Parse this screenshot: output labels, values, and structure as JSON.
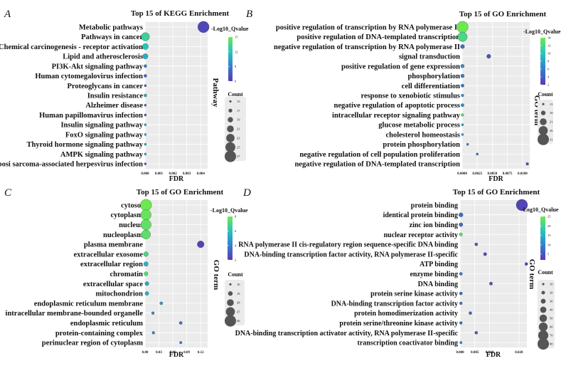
{
  "chart_data": [
    {
      "panel": "A",
      "type": "scatter",
      "title": "Top 15 of KEGG Enrichment",
      "xlabel": "FDR",
      "ylabel": "Pathway",
      "xlim": [
        0,
        0.0045
      ],
      "x_ticks": [
        "0.000",
        "0.001",
        "0.002",
        "0.003",
        "0.004"
      ],
      "x_tick_values": [
        0,
        0.001,
        0.002,
        0.003,
        0.004
      ],
      "color_legend_title": "-Log10_Qvalue",
      "color_range": [
        6,
        15
      ],
      "color_ticks": [
        "15",
        "12",
        "9",
        "6"
      ],
      "color_tick_values": [
        15,
        12,
        9,
        6
      ],
      "size_legend_title": "Count",
      "size_legend": [
        "15",
        "17",
        "19",
        "21",
        "23",
        "25",
        "27"
      ],
      "size_legend_values": [
        15,
        17,
        19,
        21,
        23,
        25,
        27
      ],
      "size_range": [
        15,
        27
      ],
      "categories": [
        "Metabolic pathways",
        "Pathways in cancer",
        "Chemical carcinogenesis - receptor activation",
        "Lipid and atherosclerosis",
        "PI3K-Akt signaling pathway",
        "Human cytomegalovirus infection",
        "Proteoglycans in cancer",
        "Insulin resistance",
        "Alzheimer disease",
        "Human papillomavirus infection",
        "Insulin signaling pathway",
        "FoxO signaling pathway",
        "Thyroid hormone signaling pathway",
        "AMPK signaling pathway",
        "Kaposi sarcoma-associated herpesvirus infection"
      ],
      "x": [
        0.0042,
        2e-05,
        2e-05,
        2e-05,
        2e-05,
        2e-05,
        2e-05,
        2e-05,
        2e-05,
        2e-05,
        2e-05,
        2e-05,
        2e-05,
        2e-05,
        2e-05
      ],
      "count": [
        27,
        23,
        20,
        19,
        16,
        16,
        15,
        16,
        15,
        15,
        15,
        15,
        15,
        15,
        15
      ],
      "color": [
        6.5,
        13,
        12,
        11,
        9,
        8,
        7.5,
        11,
        8,
        7.5,
        11,
        11,
        11,
        11,
        8
      ]
    },
    {
      "panel": "B",
      "type": "scatter",
      "title": "Top 15 of GO Enrichment",
      "xlabel": "FDR",
      "ylabel": "GO term",
      "xlim": [
        0,
        0.0112
      ],
      "x_ticks": [
        "0.0000",
        "0.0025",
        "0.0050",
        "0.0075",
        "0.0100"
      ],
      "x_tick_values": [
        0,
        0.0025,
        0.005,
        0.0075,
        0.01
      ],
      "color_legend_title": "-Log10_Qvalue",
      "color_range": [
        2,
        14
      ],
      "color_ticks": [
        "14",
        "12",
        "10",
        "8",
        "6",
        "4",
        "2"
      ],
      "color_tick_values": [
        14,
        12,
        10,
        8,
        6,
        4,
        2
      ],
      "size_legend_title": "Count",
      "size_legend": [
        "11",
        "16",
        "21",
        "26",
        "31"
      ],
      "size_legend_values": [
        11,
        16,
        21,
        26,
        31
      ],
      "size_range": [
        11,
        31
      ],
      "categories": [
        "positive regulation of transcription by RNA polymerase II",
        "positive regulation of DNA-templated transcription",
        "negative regulation of transcription by RNA polymerase II",
        "signal transduction",
        "positive regulation of gene expression",
        "phosphorylation",
        "cell differentiation",
        "response to xenobiotic stimulus",
        "negative regulation of apoptotic process",
        "intracellular receptor signaling pathway",
        "glucose metabolic process",
        "cholesterol homeostasis",
        "protein phosphorylation",
        "negative regulation of cell population proliferation",
        "negative regulation of DNA-templated transcription"
      ],
      "x": [
        5e-05,
        5e-05,
        5e-05,
        0.0044,
        5e-05,
        5e-05,
        5e-05,
        5e-05,
        5e-05,
        5e-05,
        5e-05,
        5e-05,
        0.0009,
        0.0025,
        0.0108
      ],
      "count": [
        31,
        27,
        15,
        15,
        14,
        14,
        13,
        12,
        13,
        12,
        11,
        11,
        11,
        11,
        12
      ],
      "color": [
        14,
        12,
        5,
        3.5,
        7,
        6,
        5.5,
        7,
        7,
        13,
        8,
        8,
        6,
        5,
        3
      ]
    },
    {
      "panel": "C",
      "type": "scatter",
      "title": "Top 15 of GO Enrichment",
      "xlabel": "FDR",
      "ylabel": "GO term",
      "xlim": [
        0,
        0.135
      ],
      "x_ticks": [
        "0.00",
        "0.03",
        "0.06",
        "0.09",
        "0.12"
      ],
      "x_tick_values": [
        0,
        0.03,
        0.06,
        0.09,
        0.12
      ],
      "color_legend_title": "-Log10_Qvalue",
      "color_range": [
        2,
        8
      ],
      "color_ticks": [
        "8",
        "6",
        "4",
        "2"
      ],
      "color_tick_values": [
        8,
        6,
        4,
        2
      ],
      "size_legend_title": "Count",
      "size_legend": [
        "10",
        "19",
        "28",
        "37",
        "46"
      ],
      "size_legend_values": [
        10,
        19,
        28,
        37,
        46
      ],
      "size_range": [
        10,
        46
      ],
      "categories": [
        "cytosol",
        "cytoplasm",
        "nucleus",
        "nucleoplasm",
        "plasma membrane",
        "extracellular exosome",
        "extracellular region",
        "chromatin",
        "extracellular space",
        "mitochondrion",
        "endoplasmic reticulum membrane",
        "intracellular membrane-bounded organelle",
        "endoplasmic reticulum",
        "protein-containing complex",
        "perinuclear region of cytoplasm"
      ],
      "x": [
        0.002,
        0.002,
        0.002,
        0.002,
        0.12,
        0.002,
        0.002,
        0.002,
        0.004,
        0.004,
        0.035,
        0.017,
        0.077,
        0.018,
        0.077
      ],
      "count": [
        46,
        42,
        42,
        37,
        28,
        20,
        19,
        17,
        17,
        16,
        13,
        12,
        13,
        12,
        11
      ],
      "color": [
        8,
        7.8,
        7.6,
        7.5,
        2.2,
        7,
        5.5,
        7.3,
        5.2,
        5.3,
        4.8,
        4.2,
        3.6,
        4.3,
        3.8
      ]
    },
    {
      "panel": "D",
      "type": "scatter",
      "title": "Top 15 of GO Enrichment",
      "xlabel": "FDR",
      "ylabel": "GO term",
      "xlim": [
        0,
        0.0227
      ],
      "x_ticks": [
        "0.000",
        "0.005",
        "0.010",
        "0.020"
      ],
      "x_tick_values": [
        0,
        0.005,
        0.01,
        0.02
      ],
      "color_legend_title": "-Log10_Qvalue",
      "color_range": [
        2,
        25
      ],
      "color_ticks": [
        "25",
        "20",
        "15",
        "10",
        "5"
      ],
      "color_tick_values": [
        25,
        20,
        15,
        10,
        5
      ],
      "size_legend_title": "Count",
      "size_legend": [
        "10",
        "20",
        "30",
        "40",
        "50",
        "60",
        "70",
        "80"
      ],
      "size_legend_values": [
        10,
        20,
        30,
        40,
        50,
        60,
        70,
        80
      ],
      "size_range": [
        10,
        80
      ],
      "categories": [
        "protein binding",
        "identical protein binding",
        "zinc ion binding",
        "nuclear receptor activity",
        "RNA polymerase II cis-regulatory region sequence-specific DNA binding",
        "DNA-binding transcription factor activity, RNA polymerase II-specific",
        "ATP binding",
        "enzyme binding",
        "DNA binding",
        "protein serine kinase activity",
        "DNA-binding transcription factor activity",
        "protein homodimerization activity",
        "protein serine/threonine kinase activity",
        "DNA-binding transcription activator activity, RNA polymerase II-specific",
        "transcription coactivator binding"
      ],
      "x": [
        0.021,
        0.0003,
        0.0003,
        0.0003,
        0.0055,
        0.0085,
        0.0225,
        0.0003,
        0.0105,
        0.0003,
        0.0003,
        0.0035,
        0.0003,
        0.0055,
        0.0003
      ],
      "count": [
        80,
        25,
        22,
        17,
        16,
        18,
        15,
        16,
        17,
        15,
        14,
        15,
        14,
        15,
        12
      ],
      "color": [
        3,
        8,
        8,
        23,
        5,
        4,
        3,
        9,
        5,
        8,
        9,
        7,
        8,
        6,
        12
      ]
    }
  ]
}
